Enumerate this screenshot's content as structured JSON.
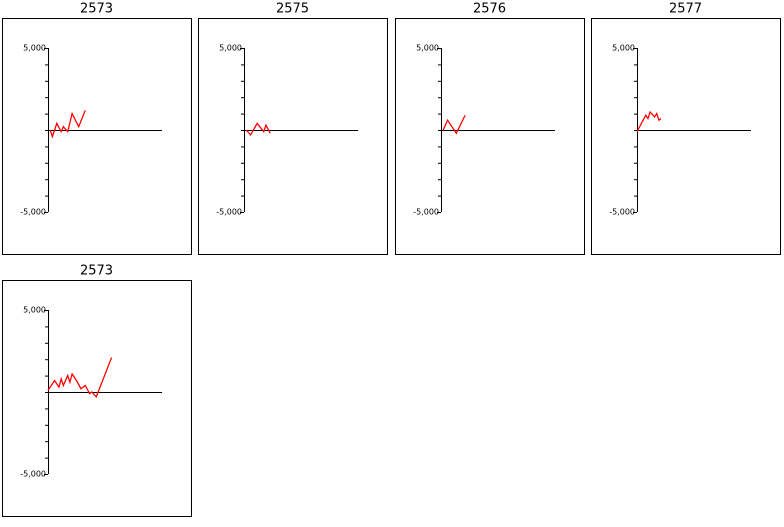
{
  "chart_data": [
    {
      "type": "line",
      "title": "2573",
      "x": [
        0.5,
        1,
        2,
        3,
        3.5,
        4.5,
        5.5,
        7,
        8.5
      ],
      "values": [
        0,
        -400,
        400,
        -100,
        200,
        -100,
        1000,
        200,
        1200
      ],
      "color": "#ff0000",
      "xlim": [
        0,
        26
      ],
      "ylim": [
        -5000,
        5000
      ],
      "yticks": [
        {
          "value": 5000,
          "label": "5,000"
        },
        {
          "value": -5000,
          "label": "-5,000"
        }
      ],
      "minor_yticks": [
        -4000,
        -3000,
        -2000,
        -1000,
        0,
        1000,
        2000,
        3000,
        4000
      ]
    },
    {
      "type": "line",
      "title": "2575",
      "x": [
        0.5,
        1.5,
        3,
        4.5,
        5,
        6
      ],
      "values": [
        0,
        -300,
        400,
        -100,
        300,
        -200
      ],
      "color": "#ff0000",
      "xlim": [
        0,
        26
      ],
      "ylim": [
        -5000,
        5000
      ],
      "yticks": [
        {
          "value": 5000,
          "label": "5,000"
        },
        {
          "value": -5000,
          "label": "-5,000"
        }
      ],
      "minor_yticks": [
        -4000,
        -3000,
        -2000,
        -1000,
        0,
        1000,
        2000,
        3000,
        4000
      ]
    },
    {
      "type": "line",
      "title": "2576",
      "x": [
        0.5,
        1.5,
        3.5,
        5.5
      ],
      "values": [
        0,
        600,
        -200,
        900
      ],
      "color": "#ff0000",
      "xlim": [
        0,
        26
      ],
      "ylim": [
        -5000,
        5000
      ],
      "yticks": [
        {
          "value": 5000,
          "label": "5,000"
        },
        {
          "value": -5000,
          "label": "-5,000"
        }
      ],
      "minor_yticks": [
        -4000,
        -3000,
        -2000,
        -1000,
        0,
        1000,
        2000,
        3000,
        4000
      ]
    },
    {
      "type": "line",
      "title": "2577",
      "x": [
        0,
        2,
        2.5,
        3,
        4,
        4.5,
        5,
        5.5
      ],
      "values": [
        -100,
        900,
        700,
        1100,
        800,
        1000,
        600,
        700
      ],
      "color": "#ff0000",
      "xlim": [
        0,
        26
      ],
      "ylim": [
        -5000,
        5000
      ],
      "yticks": [
        {
          "value": 5000,
          "label": "5,000"
        },
        {
          "value": -5000,
          "label": "-5,000"
        }
      ],
      "minor_yticks": [
        -4000,
        -3000,
        -2000,
        -1000,
        0,
        1000,
        2000,
        3000,
        4000
      ]
    },
    {
      "type": "line",
      "title": "2573",
      "x": [
        0,
        1.5,
        2.5,
        3,
        3.5,
        4.5,
        5,
        5.5,
        6.5,
        7.5,
        8.5,
        9.5,
        10,
        11,
        14.5
      ],
      "values": [
        100,
        700,
        300,
        800,
        400,
        1000,
        600,
        1100,
        700,
        200,
        400,
        -100,
        0,
        -300,
        2100
      ],
      "color": "#ff0000",
      "xlim": [
        0,
        26
      ],
      "ylim": [
        -5000,
        5000
      ],
      "yticks": [
        {
          "value": 5000,
          "label": "5,000"
        },
        {
          "value": -5000,
          "label": "-5,000"
        }
      ],
      "minor_yticks": [
        -4000,
        -3000,
        -2000,
        -1000,
        0,
        1000,
        2000,
        3000,
        4000
      ]
    }
  ]
}
